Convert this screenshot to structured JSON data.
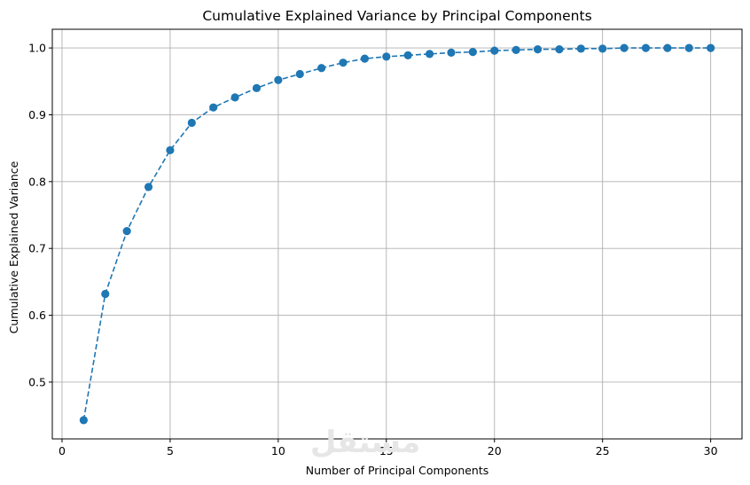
{
  "chart_data": {
    "type": "line",
    "title": "Cumulative Explained Variance by Principal Components",
    "xlabel": "Number of Principal Components",
    "ylabel": "Cumulative Explained Variance",
    "xlim": [
      -0.45,
      31.45
    ],
    "ylim": [
      0.415,
      1.028
    ],
    "xticks": [
      0,
      5,
      10,
      15,
      20,
      25,
      30
    ],
    "yticks": [
      0.5,
      0.6,
      0.7,
      0.8,
      0.9,
      1.0
    ],
    "grid": true,
    "line_style": "dashed",
    "marker": "circle",
    "color": "#1f77b4",
    "watermark": "مستقل",
    "x": [
      1,
      2,
      3,
      4,
      5,
      6,
      7,
      8,
      9,
      10,
      11,
      12,
      13,
      14,
      15,
      16,
      17,
      18,
      19,
      20,
      21,
      22,
      23,
      24,
      25,
      26,
      27,
      28,
      29,
      30
    ],
    "values": [
      0.443,
      0.632,
      0.726,
      0.792,
      0.847,
      0.888,
      0.911,
      0.926,
      0.94,
      0.952,
      0.961,
      0.97,
      0.978,
      0.984,
      0.987,
      0.989,
      0.991,
      0.993,
      0.994,
      0.996,
      0.997,
      0.998,
      0.998,
      0.999,
      0.999,
      1.0,
      1.0,
      1.0,
      1.0,
      1.0
    ]
  }
}
